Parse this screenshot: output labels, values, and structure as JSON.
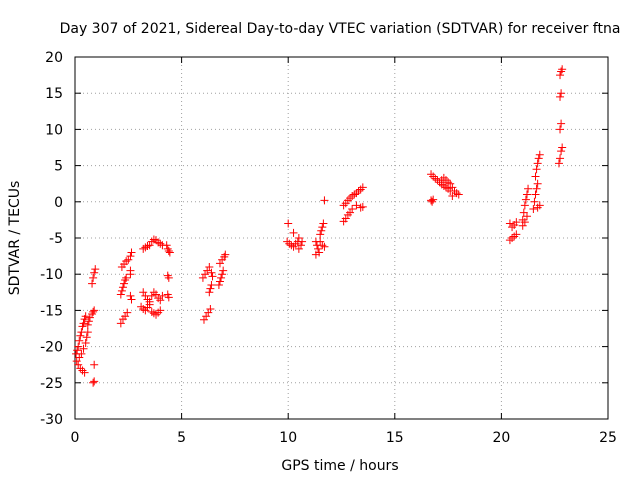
{
  "chart_data": {
    "type": "scatter",
    "title": "Day 307 of 2021, Sidereal Day-to-day VTEC variation (SDTVAR) for receiver ftna",
    "xlabel": "GPS time / hours",
    "ylabel": "SDTVAR / TECUs",
    "xlim": [
      0,
      25
    ],
    "ylim": [
      -30,
      20
    ],
    "xticks": [
      0,
      5,
      10,
      15,
      20,
      25
    ],
    "yticks": [
      -30,
      -25,
      -20,
      -15,
      -10,
      -5,
      0,
      5,
      10,
      15,
      20
    ],
    "grid": true,
    "marker": "+",
    "color": "#ff0000",
    "series": [
      {
        "name": "SDTVAR",
        "points": [
          [
            0.05,
            -21.0
          ],
          [
            0.1,
            -20.5
          ],
          [
            0.15,
            -20.0
          ],
          [
            0.2,
            -19.2
          ],
          [
            0.25,
            -18.5
          ],
          [
            0.3,
            -18.0
          ],
          [
            0.35,
            -17.2
          ],
          [
            0.4,
            -16.8
          ],
          [
            0.45,
            -16.2
          ],
          [
            0.5,
            -15.8
          ],
          [
            0.08,
            -22.0
          ],
          [
            0.15,
            -22.5
          ],
          [
            0.25,
            -23.0
          ],
          [
            0.35,
            -23.3
          ],
          [
            0.45,
            -23.6
          ],
          [
            0.2,
            -21.5
          ],
          [
            0.3,
            -21.0
          ],
          [
            0.4,
            -20.3
          ],
          [
            0.5,
            -19.5
          ],
          [
            0.55,
            -18.7
          ],
          [
            0.6,
            -18.0
          ],
          [
            0.6,
            -17.0
          ],
          [
            0.65,
            -16.5
          ],
          [
            0.7,
            -16.0
          ],
          [
            0.85,
            -25.0
          ],
          [
            0.9,
            -24.8
          ],
          [
            0.9,
            -22.5
          ],
          [
            0.8,
            -15.5
          ],
          [
            0.85,
            -15.2
          ],
          [
            0.9,
            -15.0
          ],
          [
            0.8,
            -11.3
          ],
          [
            0.85,
            -10.5
          ],
          [
            0.9,
            -9.8
          ],
          [
            0.95,
            -9.3
          ],
          [
            2.15,
            -16.8
          ],
          [
            2.25,
            -16.2
          ],
          [
            2.35,
            -15.8
          ],
          [
            2.45,
            -15.3
          ],
          [
            2.15,
            -12.8
          ],
          [
            2.2,
            -12.3
          ],
          [
            2.25,
            -11.8
          ],
          [
            2.3,
            -11.3
          ],
          [
            2.35,
            -10.8
          ],
          [
            2.4,
            -10.5
          ],
          [
            2.2,
            -9.0
          ],
          [
            2.3,
            -8.6
          ],
          [
            2.4,
            -8.2
          ],
          [
            2.5,
            -8.0
          ],
          [
            2.6,
            -13.0
          ],
          [
            2.65,
            -13.5
          ],
          [
            2.6,
            -10.0
          ],
          [
            2.6,
            -9.5
          ],
          [
            2.65,
            -7.0
          ],
          [
            2.6,
            -7.5
          ],
          [
            3.1,
            -14.5
          ],
          [
            3.2,
            -14.8
          ],
          [
            3.3,
            -15.0
          ],
          [
            3.4,
            -14.6
          ],
          [
            3.5,
            -14.2
          ],
          [
            3.6,
            -15.2
          ],
          [
            3.7,
            -15.4
          ],
          [
            3.8,
            -15.6
          ],
          [
            3.9,
            -15.3
          ],
          [
            4.0,
            -15.0
          ],
          [
            3.2,
            -12.5
          ],
          [
            3.3,
            -13.0
          ],
          [
            3.4,
            -13.5
          ],
          [
            3.5,
            -13.8
          ],
          [
            3.6,
            -13.0
          ],
          [
            3.7,
            -12.5
          ],
          [
            3.8,
            -12.8
          ],
          [
            3.9,
            -13.3
          ],
          [
            4.0,
            -13.6
          ],
          [
            4.1,
            -13.0
          ],
          [
            3.2,
            -6.5
          ],
          [
            3.3,
            -6.3
          ],
          [
            3.4,
            -6.1
          ],
          [
            3.5,
            -6.0
          ],
          [
            3.6,
            -5.5
          ],
          [
            3.7,
            -5.2
          ],
          [
            3.8,
            -5.3
          ],
          [
            3.9,
            -5.6
          ],
          [
            4.0,
            -5.8
          ],
          [
            4.1,
            -6.0
          ],
          [
            4.3,
            -6.0
          ],
          [
            4.35,
            -6.5
          ],
          [
            4.4,
            -6.8
          ],
          [
            4.45,
            -7.0
          ],
          [
            4.35,
            -10.2
          ],
          [
            4.4,
            -10.5
          ],
          [
            4.35,
            -12.8
          ],
          [
            4.4,
            -13.2
          ],
          [
            6.05,
            -16.3
          ],
          [
            6.15,
            -15.8
          ],
          [
            6.25,
            -15.3
          ],
          [
            6.35,
            -14.8
          ],
          [
            6.0,
            -10.5
          ],
          [
            6.1,
            -10.0
          ],
          [
            6.2,
            -9.5
          ],
          [
            6.3,
            -9.0
          ],
          [
            6.4,
            -9.8
          ],
          [
            6.45,
            -10.3
          ],
          [
            6.3,
            -12.5
          ],
          [
            6.35,
            -12.0
          ],
          [
            6.4,
            -11.5
          ],
          [
            6.75,
            -11.5
          ],
          [
            6.8,
            -11.0
          ],
          [
            6.85,
            -10.5
          ],
          [
            6.9,
            -10.0
          ],
          [
            6.95,
            -9.5
          ],
          [
            6.8,
            -8.5
          ],
          [
            6.9,
            -8.0
          ],
          [
            7.0,
            -7.6
          ],
          [
            7.05,
            -7.3
          ],
          [
            9.95,
            -5.5
          ],
          [
            10.05,
            -5.8
          ],
          [
            10.15,
            -6.0
          ],
          [
            10.25,
            -6.2
          ],
          [
            10.35,
            -5.8
          ],
          [
            10.45,
            -5.5
          ],
          [
            10.5,
            -6.5
          ],
          [
            10.6,
            -6.0
          ],
          [
            10.65,
            -5.5
          ],
          [
            10.5,
            -5.0
          ],
          [
            10.0,
            -3.0
          ],
          [
            10.25,
            -4.3
          ],
          [
            11.3,
            -5.5
          ],
          [
            11.35,
            -6.0
          ],
          [
            11.4,
            -6.5
          ],
          [
            11.45,
            -7.0
          ],
          [
            11.3,
            -7.3
          ],
          [
            11.5,
            -4.5
          ],
          [
            11.55,
            -4.0
          ],
          [
            11.6,
            -3.5
          ],
          [
            11.65,
            -3.0
          ],
          [
            11.5,
            -5.5
          ],
          [
            11.6,
            -6.0
          ],
          [
            11.7,
            -6.2
          ],
          [
            11.7,
            0.2
          ],
          [
            12.6,
            -2.7
          ],
          [
            12.7,
            -2.3
          ],
          [
            12.8,
            -1.8
          ],
          [
            12.9,
            -1.5
          ],
          [
            12.6,
            -0.5
          ],
          [
            12.7,
            -0.2
          ],
          [
            12.8,
            0.2
          ],
          [
            12.9,
            0.5
          ],
          [
            13.0,
            0.8
          ],
          [
            13.1,
            1.0
          ],
          [
            13.2,
            1.2
          ],
          [
            13.3,
            1.5
          ],
          [
            13.4,
            1.7
          ],
          [
            13.5,
            2.0
          ],
          [
            13.0,
            -1.0
          ],
          [
            13.2,
            -0.5
          ],
          [
            13.4,
            -0.8
          ],
          [
            13.5,
            -0.7
          ],
          [
            16.7,
            3.8
          ],
          [
            16.8,
            3.5
          ],
          [
            16.9,
            3.2
          ],
          [
            17.0,
            3.0
          ],
          [
            17.1,
            2.7
          ],
          [
            17.2,
            2.4
          ],
          [
            17.3,
            2.2
          ],
          [
            17.4,
            2.0
          ],
          [
            17.5,
            1.8
          ],
          [
            17.6,
            1.5
          ],
          [
            17.2,
            3.0
          ],
          [
            17.3,
            3.3
          ],
          [
            17.4,
            3.0
          ],
          [
            17.5,
            2.7
          ],
          [
            17.6,
            2.5
          ],
          [
            17.7,
            2.0
          ],
          [
            17.8,
            1.5
          ],
          [
            17.9,
            1.2
          ],
          [
            18.0,
            1.0
          ],
          [
            17.7,
            0.8
          ],
          [
            16.7,
            0.2
          ],
          [
            16.75,
            0.0
          ],
          [
            16.8,
            0.3
          ],
          [
            20.4,
            -5.3
          ],
          [
            20.5,
            -5.0
          ],
          [
            20.6,
            -4.8
          ],
          [
            20.7,
            -4.5
          ],
          [
            20.4,
            -3.0
          ],
          [
            20.5,
            -3.5
          ],
          [
            20.6,
            -3.2
          ],
          [
            20.7,
            -2.8
          ],
          [
            21.0,
            -2.5
          ],
          [
            21.05,
            -1.5
          ],
          [
            21.1,
            -0.5
          ],
          [
            21.15,
            0.3
          ],
          [
            21.2,
            1.0
          ],
          [
            21.25,
            1.8
          ],
          [
            21.0,
            -3.3
          ],
          [
            21.1,
            -2.8
          ],
          [
            21.2,
            -2.0
          ],
          [
            21.5,
            -1.0
          ],
          [
            21.55,
            0.0
          ],
          [
            21.6,
            1.0
          ],
          [
            21.65,
            1.8
          ],
          [
            21.7,
            2.5
          ],
          [
            21.6,
            3.5
          ],
          [
            21.65,
            4.5
          ],
          [
            21.7,
            5.3
          ],
          [
            21.75,
            6.0
          ],
          [
            21.8,
            6.5
          ],
          [
            21.7,
            -0.8
          ],
          [
            21.8,
            -0.5
          ],
          [
            22.7,
            5.3
          ],
          [
            22.75,
            6.0
          ],
          [
            22.8,
            7.0
          ],
          [
            22.85,
            7.5
          ],
          [
            22.75,
            10.0
          ],
          [
            22.8,
            10.8
          ],
          [
            22.75,
            14.5
          ],
          [
            22.8,
            15.0
          ],
          [
            22.75,
            17.5
          ],
          [
            22.8,
            18.0
          ],
          [
            22.85,
            18.3
          ]
        ]
      }
    ]
  }
}
